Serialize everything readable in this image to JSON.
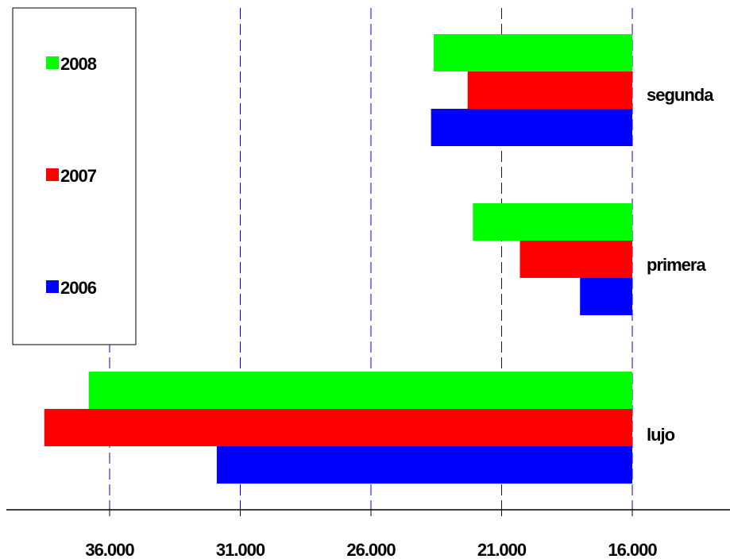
{
  "chart_data": {
    "type": "bar",
    "orientation": "horizontal",
    "axis_direction": "reversed",
    "categories": [
      "lujo",
      "primera",
      "segunda"
    ],
    "series": [
      {
        "name": "2006",
        "color": "#0000ff",
        "values": [
          31.9,
          18.0,
          23.7
        ]
      },
      {
        "name": "2007",
        "color": "#ff0000",
        "values": [
          38.5,
          20.3,
          22.3
        ]
      },
      {
        "name": "2008",
        "color": "#00ff00",
        "values": [
          36.8,
          22.1,
          23.6
        ]
      }
    ],
    "xlim": [
      16.0,
      40.0
    ],
    "xticks": [
      {
        "value": 36.0,
        "label": "36.000"
      },
      {
        "value": 31.0,
        "label": "31.000"
      },
      {
        "value": 26.0,
        "label": "26.000"
      },
      {
        "value": 21.0,
        "label": "21.000"
      },
      {
        "value": 16.0,
        "label": "16.000"
      }
    ],
    "gridlines": "vertical-dashed",
    "grid_color": "#0000ff",
    "legend_placement": "top-left",
    "legend_order": [
      "2008",
      "2007",
      "2006"
    ]
  }
}
